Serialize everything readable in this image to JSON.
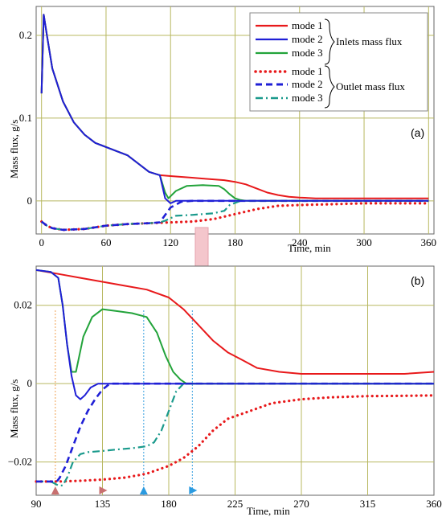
{
  "chart_data": [
    {
      "id": "a",
      "type": "line",
      "panel_label": "(a)",
      "xlabel": "Time, min",
      "ylabel": "Mass flux, g/s",
      "xlim": [
        -5,
        365
      ],
      "ylim": [
        -0.04,
        0.235
      ],
      "xticks": [
        0,
        60,
        120,
        180,
        240,
        300,
        360
      ],
      "yticks": [
        0,
        0.1,
        0.2
      ],
      "ytick_labels": [
        "0",
        "0.1",
        "0.2"
      ],
      "grid": true,
      "legend": {
        "placement": "top-right",
        "groups": [
          {
            "label": "Inlets mass flux",
            "entries": [
              "mode 1",
              "mode 2",
              "mode 3"
            ]
          },
          {
            "label": "Outlet mass flux",
            "entries": [
              "mode 1",
              "mode 2",
              "mode 3"
            ]
          }
        ]
      },
      "series": [
        {
          "name": "mode 1",
          "group": "Inlets mass flux",
          "color": "#e8191b",
          "dash": "solid",
          "x": [
            0,
            2,
            5,
            10,
            20,
            30,
            40,
            50,
            60,
            70,
            80,
            90,
            100,
            110,
            120,
            130,
            140,
            150,
            160,
            170,
            180,
            190,
            200,
            210,
            220,
            230,
            240,
            255,
            270,
            300,
            330,
            360
          ],
          "y": [
            0.13,
            0.225,
            0.2,
            0.16,
            0.12,
            0.095,
            0.08,
            0.07,
            0.065,
            0.06,
            0.055,
            0.045,
            0.035,
            0.031,
            0.03,
            0.029,
            0.028,
            0.027,
            0.026,
            0.025,
            0.023,
            0.02,
            0.015,
            0.01,
            0.007,
            0.005,
            0.004,
            0.003,
            0.003,
            0.003,
            0.003,
            0.003
          ]
        },
        {
          "name": "mode 2",
          "group": "Inlets mass flux",
          "color": "#1f1fd6",
          "dash": "solid",
          "x": [
            0,
            2,
            5,
            10,
            20,
            30,
            40,
            50,
            60,
            70,
            80,
            90,
            100,
            110,
            115,
            120,
            125,
            130,
            140,
            360
          ],
          "y": [
            0.13,
            0.225,
            0.2,
            0.16,
            0.12,
            0.095,
            0.08,
            0.07,
            0.065,
            0.06,
            0.055,
            0.045,
            0.035,
            0.031,
            0.003,
            -0.003,
            0.0,
            0.0,
            0.0,
            0.0
          ]
        },
        {
          "name": "mode 3",
          "group": "Inlets mass flux",
          "color": "#22a33a",
          "dash": "solid",
          "x": [
            0,
            2,
            5,
            10,
            20,
            30,
            40,
            50,
            60,
            70,
            80,
            90,
            100,
            110,
            115,
            118,
            125,
            135,
            150,
            165,
            170,
            175,
            180,
            185,
            190,
            200,
            360
          ],
          "y": [
            0.13,
            0.225,
            0.2,
            0.16,
            0.12,
            0.095,
            0.08,
            0.07,
            0.065,
            0.06,
            0.055,
            0.045,
            0.035,
            0.031,
            0.01,
            0.003,
            0.012,
            0.018,
            0.019,
            0.018,
            0.014,
            0.008,
            0.003,
            0.001,
            0.0,
            0.0,
            0.0
          ]
        },
        {
          "name": "mode 1",
          "group": "Outlet mass flux",
          "color": "#e8191b",
          "dash": "dot",
          "x": [
            0,
            5,
            10,
            20,
            40,
            60,
            80,
            100,
            120,
            140,
            160,
            180,
            200,
            220,
            240,
            270,
            300,
            330,
            360
          ],
          "y": [
            -0.025,
            -0.03,
            -0.033,
            -0.035,
            -0.034,
            -0.03,
            -0.028,
            -0.027,
            -0.026,
            -0.025,
            -0.022,
            -0.016,
            -0.01,
            -0.006,
            -0.005,
            -0.004,
            -0.003,
            -0.003,
            -0.003
          ]
        },
        {
          "name": "mode 2",
          "group": "Outlet mass flux",
          "color": "#1f1fd6",
          "dash": "dash",
          "x": [
            0,
            5,
            10,
            20,
            40,
            60,
            80,
            100,
            110,
            120,
            130,
            140,
            360
          ],
          "y": [
            -0.025,
            -0.03,
            -0.033,
            -0.035,
            -0.034,
            -0.03,
            -0.028,
            -0.027,
            -0.026,
            -0.008,
            -0.001,
            0.0,
            0.0
          ]
        },
        {
          "name": "mode 3",
          "group": "Outlet mass flux",
          "color": "#1a9a8c",
          "dash": "dashdot",
          "x": [
            0,
            5,
            10,
            20,
            40,
            60,
            80,
            100,
            110,
            115,
            125,
            140,
            150,
            160,
            170,
            175,
            185,
            195,
            360
          ],
          "y": [
            -0.025,
            -0.03,
            -0.033,
            -0.035,
            -0.034,
            -0.03,
            -0.028,
            -0.027,
            -0.026,
            -0.024,
            -0.018,
            -0.017,
            -0.016,
            -0.015,
            -0.012,
            -0.005,
            0.0,
            0.0,
            0.0
          ]
        }
      ]
    },
    {
      "id": "b",
      "type": "line",
      "panel_label": "(b)",
      "xlabel": "Time, min",
      "ylabel": "Mass flux, g/s",
      "xlim": [
        90,
        360
      ],
      "ylim": [
        -0.0285,
        0.03
      ],
      "xticks": [
        90,
        135,
        180,
        225,
        270,
        315,
        360
      ],
      "yticks": [
        0.02,
        0,
        -0.02
      ],
      "ytick_labels": [
        "0.02",
        "0",
        "−0.02"
      ],
      "grid": true,
      "series": [
        {
          "name": "mode 1",
          "group": "Inlets mass flux",
          "color": "#e8191b",
          "dash": "solid",
          "x": [
            90,
            105,
            120,
            135,
            150,
            165,
            180,
            190,
            200,
            210,
            220,
            230,
            240,
            255,
            270,
            290,
            315,
            340,
            360
          ],
          "y": [
            0.029,
            0.028,
            0.027,
            0.026,
            0.025,
            0.024,
            0.022,
            0.019,
            0.015,
            0.011,
            0.008,
            0.006,
            0.004,
            0.003,
            0.0025,
            0.0025,
            0.0025,
            0.0025,
            0.003
          ]
        },
        {
          "name": "mode 2",
          "group": "Inlets mass flux",
          "color": "#1f1fd6",
          "dash": "solid",
          "x": [
            90,
            100,
            105,
            108,
            111,
            114,
            117,
            120,
            123,
            127,
            132,
            140,
            360
          ],
          "y": [
            0.029,
            0.0285,
            0.027,
            0.02,
            0.01,
            0.002,
            -0.003,
            -0.004,
            -0.003,
            -0.001,
            0.0,
            0.0,
            0.0
          ]
        },
        {
          "name": "mode 3",
          "group": "Inlets mass flux",
          "color": "#22a33a",
          "dash": "solid",
          "x": [
            90,
            100,
            105,
            108,
            111,
            114,
            117,
            122,
            128,
            135,
            145,
            155,
            165,
            172,
            178,
            183,
            188,
            192,
            200,
            360
          ],
          "y": [
            0.029,
            0.0285,
            0.027,
            0.02,
            0.01,
            0.003,
            0.003,
            0.012,
            0.017,
            0.019,
            0.0185,
            0.018,
            0.017,
            0.013,
            0.007,
            0.003,
            0.001,
            0.0,
            0.0,
            0.0
          ]
        },
        {
          "name": "mode 1",
          "group": "Outlet mass flux",
          "color": "#e8191b",
          "dash": "dot",
          "x": [
            90,
            105,
            120,
            135,
            150,
            165,
            180,
            190,
            200,
            210,
            220,
            235,
            250,
            270,
            290,
            315,
            340,
            360
          ],
          "y": [
            -0.025,
            -0.025,
            -0.0248,
            -0.0245,
            -0.024,
            -0.023,
            -0.021,
            -0.019,
            -0.016,
            -0.012,
            -0.009,
            -0.007,
            -0.005,
            -0.004,
            -0.0035,
            -0.0032,
            -0.0031,
            -0.003
          ]
        },
        {
          "name": "mode 2",
          "group": "Outlet mass flux",
          "color": "#1f1fd6",
          "dash": "dash",
          "x": [
            90,
            104,
            106,
            110,
            115,
            120,
            125,
            130,
            135,
            140,
            150,
            360
          ],
          "y": [
            -0.025,
            -0.025,
            -0.024,
            -0.021,
            -0.016,
            -0.011,
            -0.007,
            -0.004,
            -0.0015,
            0.0,
            0.0,
            0.0
          ]
        },
        {
          "name": "mode 3",
          "group": "Outlet mass flux",
          "color": "#1a9a8c",
          "dash": "dashdot",
          "x": [
            90,
            100,
            105,
            108,
            111,
            115,
            120,
            125,
            135,
            145,
            155,
            165,
            170,
            175,
            180,
            185,
            190,
            195,
            200,
            360
          ],
          "y": [
            -0.025,
            -0.025,
            -0.026,
            -0.026,
            -0.024,
            -0.02,
            -0.018,
            -0.0175,
            -0.0172,
            -0.0168,
            -0.0165,
            -0.016,
            -0.015,
            -0.012,
            -0.007,
            -0.002,
            0.0,
            0.0,
            0.0,
            0.0
          ]
        }
      ],
      "guides": [
        {
          "x": 103,
          "color": "#f0a050"
        },
        {
          "x": 163,
          "color": "#3aa0e0"
        },
        {
          "x": 196,
          "color": "#3aa0e0"
        }
      ],
      "markers": [
        {
          "x": 103,
          "color": "#c87070",
          "shape": "up"
        },
        {
          "x": 135,
          "color": "#c87070",
          "shape": "right"
        },
        {
          "x": 163,
          "color": "#2a9ae0",
          "shape": "up"
        },
        {
          "x": 196,
          "color": "#2a9ae0",
          "shape": "right"
        }
      ]
    }
  ],
  "legend_labels": {
    "inlets": "Inlets mass flux",
    "outlet": "Outlet mass flux"
  }
}
